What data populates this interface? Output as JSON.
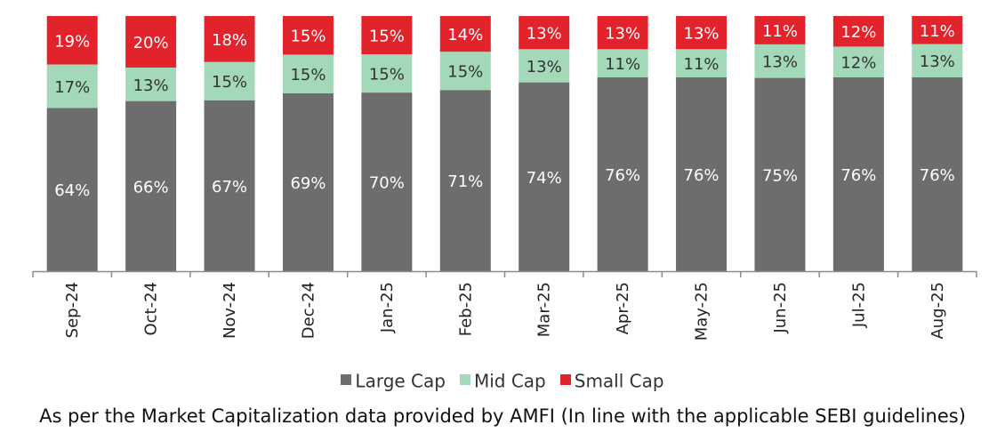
{
  "chart_data": {
    "type": "bar",
    "stacked": true,
    "categories": [
      "Sep-24",
      "Oct-24",
      "Nov-24",
      "Dec-24",
      "Jan-25",
      "Feb-25",
      "Mar-25",
      "Apr-25",
      "May-25",
      "Jun-25",
      "Jul-25",
      "Aug-25"
    ],
    "series": [
      {
        "name": "Large Cap",
        "color": "#6d6d6d",
        "label_color": "#ffffff",
        "values": [
          64,
          66,
          67,
          69,
          70,
          71,
          74,
          76,
          76,
          75,
          76,
          76
        ]
      },
      {
        "name": "Mid Cap",
        "color": "#a3d9b8",
        "label_color": "#333333",
        "values": [
          17,
          13,
          15,
          15,
          15,
          15,
          13,
          11,
          11,
          13,
          12,
          13
        ]
      },
      {
        "name": "Small Cap",
        "color": "#e3232c",
        "label_color": "#ffffff",
        "values": [
          19,
          20,
          18,
          15,
          15,
          14,
          13,
          13,
          13,
          11,
          12,
          11
        ]
      }
    ],
    "value_suffix": "%",
    "ylim": [
      0,
      100
    ],
    "grid": false,
    "legend_position": "bottom"
  },
  "footnote": "As per the Market Capitalization data provided by AMFI (In line with the applicable SEBI guidelines)"
}
